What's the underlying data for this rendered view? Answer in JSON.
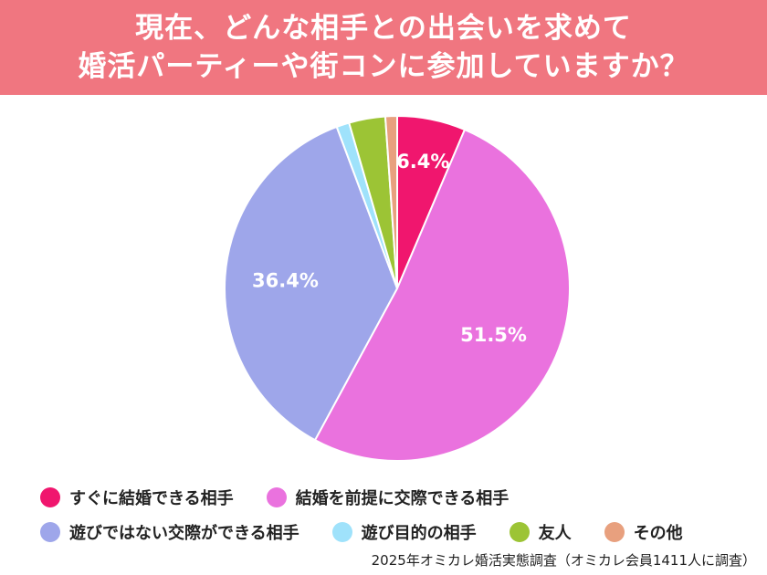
{
  "title": {
    "line1": "現在、どんな相手との出会いを求めて",
    "line2": "婚活パーティーや街コンに参加していますか？"
  },
  "source": "2025年オミカレ婚活実態調査（オミカレ会員1411人に調査）",
  "chart_data": {
    "type": "pie",
    "title": "現在、どんな相手との出会いを求めて婚活パーティーや街コンに参加していますか？",
    "unit": "%",
    "start_angle_deg": 0,
    "direction": "clockwise",
    "slices": [
      {
        "name": "すぐに結婚できる相手",
        "value": 6.4,
        "label": "6.4%",
        "color": "#f0166e"
      },
      {
        "name": "結婚を前提に交際できる相手",
        "value": 51.5,
        "label": "51.5%",
        "color": "#ea72de"
      },
      {
        "name": "遊びではない交際ができる相手",
        "value": 36.4,
        "label": "36.4%",
        "color": "#9ea6ea"
      },
      {
        "name": "遊び目的の相手",
        "value": 1.2,
        "label": "",
        "color": "#9fe2fb"
      },
      {
        "name": "友人",
        "value": 3.4,
        "label": "",
        "color": "#9cc435"
      },
      {
        "name": "その他",
        "value": 1.1,
        "label": "",
        "color": "#e8a07e"
      }
    ],
    "legend": {
      "placement": "bottom"
    }
  }
}
